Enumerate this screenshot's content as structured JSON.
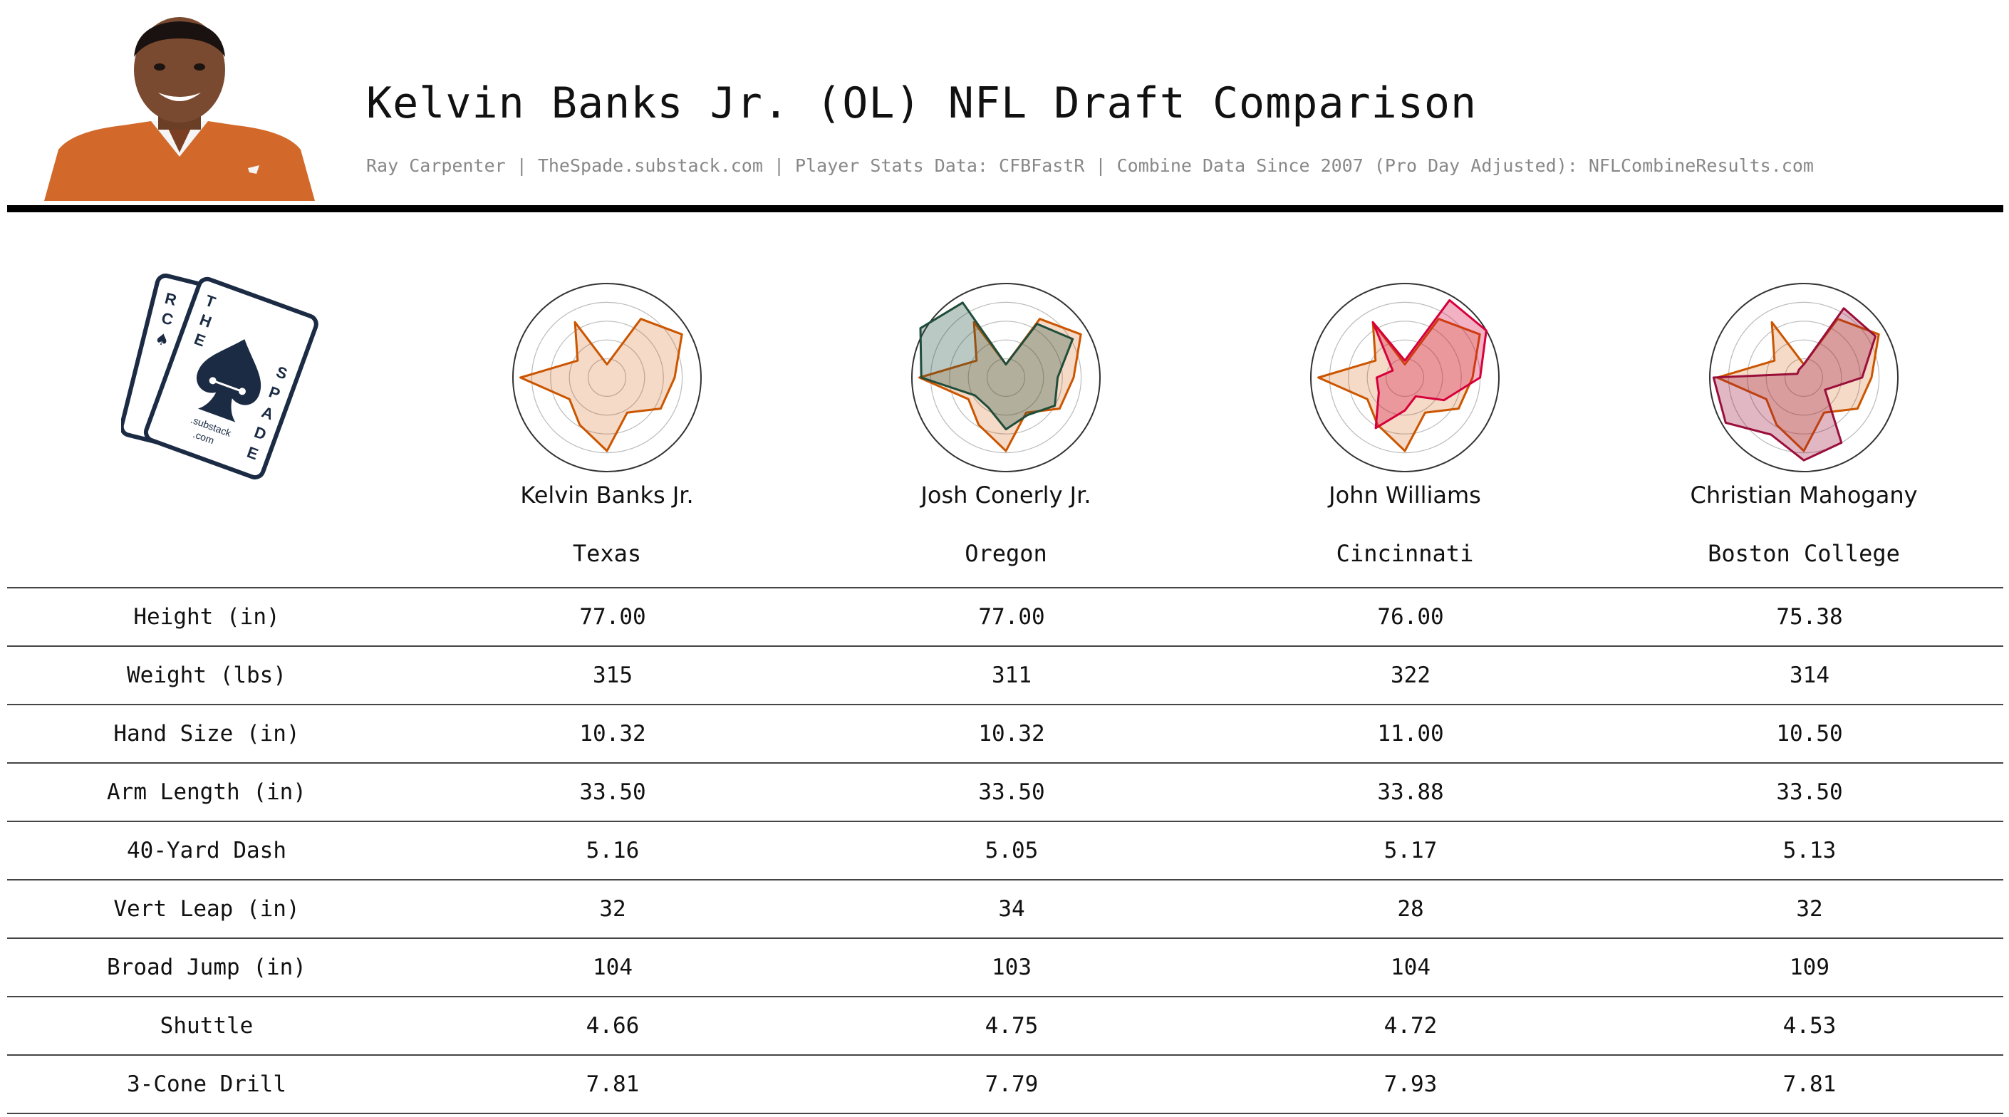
{
  "header": {
    "title": "Kelvin Banks Jr. (OL) NFL Draft Comparison",
    "subtitle": "Ray Carpenter | TheSpade.substack.com | Player Stats Data: CFBFastR | Combine Data Since 2007 (Pro Day Adjusted): NFLCombineResults.com"
  },
  "logo": {
    "letters_left": [
      "R",
      "C",
      "T",
      "H",
      "E"
    ],
    "letters_right": [
      "S",
      "P",
      "A",
      "D",
      "E"
    ],
    "substack": ".substack",
    "com": ".com"
  },
  "colors": {
    "texas_orange": "#cc5500",
    "oregon_green": "#1f4d3a",
    "cincinnati_red": "#d6003a",
    "bc_maroon": "#9a0f3a",
    "navy": "#1b2b44"
  },
  "players": [
    {
      "name": "Kelvin Banks Jr.",
      "school": "Texas"
    },
    {
      "name": "Josh Conerly Jr.",
      "school": "Oregon"
    },
    {
      "name": "John Williams",
      "school": "Cincinnati"
    },
    {
      "name": "Christian Mahogany",
      "school": "Boston College"
    }
  ],
  "table": {
    "rows": [
      {
        "label": "Height (in)",
        "values": [
          "77.00",
          "77.00",
          "76.00",
          "75.38"
        ]
      },
      {
        "label": "Weight (lbs)",
        "values": [
          "315",
          "311",
          "322",
          "314"
        ]
      },
      {
        "label": "Hand Size (in)",
        "values": [
          "10.32",
          "10.32",
          "11.00",
          "10.50"
        ]
      },
      {
        "label": "Arm Length (in)",
        "values": [
          "33.50",
          "33.50",
          "33.88",
          "33.50"
        ]
      },
      {
        "label": "40-Yard Dash",
        "values": [
          "5.16",
          "5.05",
          "5.17",
          "5.13"
        ]
      },
      {
        "label": "Vert Leap (in)",
        "values": [
          "32",
          "34",
          "28",
          "32"
        ]
      },
      {
        "label": "Broad Jump (in)",
        "values": [
          "104",
          "103",
          "104",
          "109"
        ]
      },
      {
        "label": "Shuttle",
        "values": [
          "4.66",
          "4.75",
          "4.72",
          "4.53"
        ]
      },
      {
        "label": "3-Cone Drill",
        "values": [
          "7.81",
          "7.79",
          "7.93",
          "7.81"
        ]
      }
    ]
  },
  "chart_data": [
    {
      "type": "radar",
      "name": "Kelvin Banks Jr.",
      "color": "#cc5500",
      "rmax": 1.0,
      "rings": [
        0.2,
        0.4,
        0.6,
        0.8,
        1.0
      ],
      "series": [
        {
          "color": "#cc5500",
          "values": [
            0.14,
            0.72,
            0.92,
            0.72,
            0.66,
            0.43,
            0.78,
            0.58,
            0.46,
            0.92,
            0.36,
            0.68
          ]
        }
      ]
    },
    {
      "type": "radar",
      "name": "Josh Conerly Jr.",
      "color": "#1f4d3a",
      "rmax": 1.0,
      "rings": [
        0.2,
        0.4,
        0.6,
        0.8,
        1.0
      ],
      "series": [
        {
          "color": "#cc5500",
          "values": [
            0.14,
            0.72,
            0.92,
            0.72,
            0.66,
            0.43,
            0.78,
            0.58,
            0.46,
            0.92,
            0.36,
            0.68
          ]
        },
        {
          "color": "#1f4d3a",
          "values": [
            0.14,
            0.66,
            0.82,
            0.55,
            0.6,
            0.46,
            0.55,
            0.37,
            0.38,
            0.9,
            1.05,
            0.92
          ]
        }
      ]
    },
    {
      "type": "radar",
      "name": "John Williams",
      "color": "#d6003a",
      "rmax": 1.0,
      "rings": [
        0.2,
        0.4,
        0.6,
        0.8,
        1.0
      ],
      "series": [
        {
          "color": "#cc5500",
          "values": [
            0.14,
            0.72,
            0.92,
            0.72,
            0.66,
            0.43,
            0.78,
            0.58,
            0.46,
            0.92,
            0.36,
            0.68
          ]
        },
        {
          "color": "#d6003a",
          "values": [
            0.18,
            0.95,
            1.0,
            0.8,
            0.48,
            0.23,
            0.35,
            0.62,
            0.32,
            0.3,
            0.15,
            0.68
          ]
        }
      ]
    },
    {
      "type": "radar",
      "name": "Christian Mahogany",
      "color": "#9a0f3a",
      "rmax": 1.0,
      "rings": [
        0.2,
        0.4,
        0.6,
        0.8,
        1.0
      ],
      "series": [
        {
          "color": "#cc5500",
          "values": [
            0.14,
            0.72,
            0.92,
            0.72,
            0.66,
            0.43,
            0.78,
            0.58,
            0.46,
            0.92,
            0.36,
            0.68
          ]
        },
        {
          "color": "#9a0f3a",
          "values": [
            0.14,
            0.85,
            0.88,
            0.62,
            0.26,
            0.8,
            0.88,
            0.7,
            0.96,
            0.96,
            0.08,
            0.1
          ]
        }
      ]
    }
  ]
}
